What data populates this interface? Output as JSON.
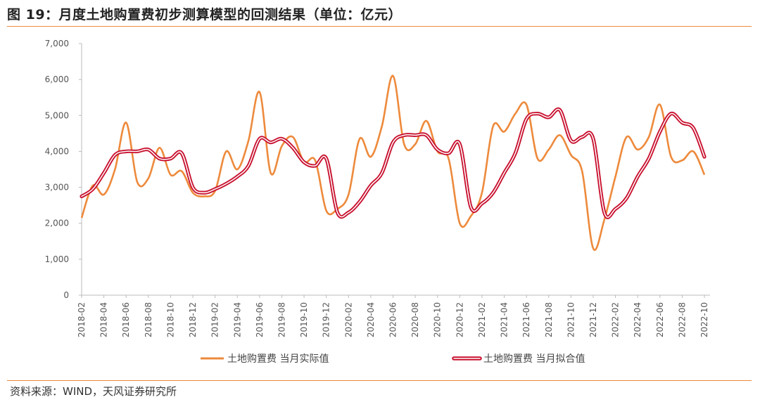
{
  "title": "图 19：月度土地购置费初步测算模型的回测结果（单位：亿元）",
  "source": "资料来源：WIND，天风证券研究所",
  "colors": {
    "actual": "#ED8A3C",
    "fit_outer": "#C8102E",
    "fit_inner": "#FFFFFF",
    "accent_rule": "#ED8A3C"
  },
  "chart_data": {
    "type": "line",
    "title": "",
    "xlabel": "",
    "ylabel": "",
    "ylim": [
      0,
      7000
    ],
    "yticks": [
      "0",
      "1,000",
      "2,000",
      "3,000",
      "4,000",
      "5,000",
      "6,000",
      "7,000"
    ],
    "x": [
      "2018-02",
      "2018-03",
      "2018-04",
      "2018-05",
      "2018-06",
      "2018-07",
      "2018-08",
      "2018-09",
      "2018-10",
      "2018-11",
      "2018-12",
      "2019-01",
      "2019-02",
      "2019-03",
      "2019-04",
      "2019-05",
      "2019-06",
      "2019-07",
      "2019-08",
      "2019-09",
      "2019-10",
      "2019-11",
      "2019-12",
      "2020-01",
      "2020-02",
      "2020-03",
      "2020-04",
      "2020-05",
      "2020-06",
      "2020-07",
      "2020-08",
      "2020-09",
      "2020-10",
      "2020-11",
      "2020-12",
      "2021-01",
      "2021-02",
      "2021-03",
      "2021-04",
      "2021-05",
      "2021-06",
      "2021-07",
      "2021-08",
      "2021-09",
      "2021-10",
      "2021-11",
      "2021-12",
      "2022-01",
      "2022-02",
      "2022-03",
      "2022-04",
      "2022-05",
      "2022-06",
      "2022-07",
      "2022-08",
      "2022-09",
      "2022-10"
    ],
    "xticks": [
      "2018-02",
      "2018-04",
      "2018-06",
      "2018-08",
      "2018-10",
      "2018-12",
      "2019-02",
      "2019-04",
      "2019-06",
      "2019-08",
      "2019-10",
      "2019-12",
      "2020-02",
      "2020-04",
      "2020-06",
      "2020-08",
      "2020-10",
      "2020-12",
      "2021-02",
      "2021-04",
      "2021-06",
      "2021-08",
      "2021-10",
      "2021-12",
      "2022-02",
      "2022-04",
      "2022-06",
      "2022-08",
      "2022-10"
    ],
    "series": [
      {
        "name": "土地购置费 当月实际值",
        "style": "orange",
        "values": [
          2150,
          3050,
          2800,
          3500,
          4800,
          3150,
          3250,
          4100,
          3350,
          3450,
          2850,
          2750,
          2900,
          4000,
          3500,
          4300,
          5650,
          3400,
          4150,
          4400,
          3700,
          3750,
          2350,
          2400,
          2800,
          4350,
          3850,
          4700,
          6100,
          4200,
          4200,
          4850,
          4000,
          3800,
          2000,
          2200,
          2850,
          4700,
          4550,
          5050,
          5300,
          3800,
          4050,
          4450,
          3900,
          3450,
          1300,
          2100,
          3300,
          4400,
          4050,
          4400,
          5300,
          3850,
          3750,
          4000,
          3350
        ]
      },
      {
        "name": "土地购置费 当月拟合值",
        "style": "red-outline",
        "values": [
          2750,
          2950,
          3400,
          3900,
          4000,
          4000,
          4050,
          3800,
          3800,
          3950,
          3000,
          2850,
          2950,
          3100,
          3300,
          3600,
          4350,
          4250,
          4350,
          4100,
          3700,
          3600,
          3800,
          2300,
          2300,
          2600,
          3050,
          3400,
          4250,
          4450,
          4450,
          4450,
          4050,
          3950,
          4200,
          2450,
          2550,
          2850,
          3400,
          3950,
          4900,
          5050,
          4950,
          5150,
          4300,
          4400,
          4350,
          2300,
          2400,
          2700,
          3300,
          3800,
          4550,
          5050,
          4800,
          4650,
          3850
        ]
      }
    ],
    "legend": {
      "position": "bottom",
      "entries": [
        "土地购置费 当月实际值",
        "土地购置费 当月拟合值"
      ]
    },
    "grid": false
  }
}
